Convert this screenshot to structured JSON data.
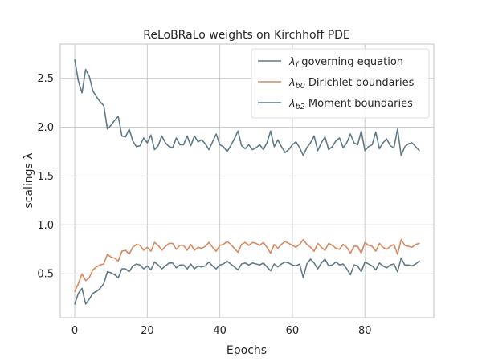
{
  "chart_data": {
    "type": "line",
    "title": "ReLoBRaLo weights on Kirchhoff PDE",
    "xlabel": "Epochs",
    "ylabel": "scalings λ",
    "xlim": [
      -4,
      99
    ],
    "ylim": [
      0.05,
      2.85
    ],
    "xticks": [
      0,
      20,
      40,
      60,
      80
    ],
    "yticks": [
      0.5,
      1.0,
      1.5,
      2.0,
      2.5
    ],
    "xtick_labels": [
      "0",
      "20",
      "40",
      "60",
      "80"
    ],
    "ytick_labels": [
      "0.5",
      "1.0",
      "1.5",
      "2.0",
      "2.5"
    ],
    "grid": true,
    "legend_position": "top-right",
    "x": [
      0,
      1,
      2,
      3,
      4,
      5,
      6,
      7,
      8,
      9,
      10,
      11,
      12,
      13,
      14,
      15,
      16,
      17,
      18,
      19,
      20,
      21,
      22,
      23,
      24,
      25,
      26,
      27,
      28,
      29,
      30,
      31,
      32,
      33,
      34,
      35,
      36,
      37,
      38,
      39,
      40,
      41,
      42,
      43,
      44,
      45,
      46,
      47,
      48,
      49,
      50,
      51,
      52,
      53,
      54,
      55,
      56,
      57,
      58,
      59,
      60,
      61,
      62,
      63,
      64,
      65,
      66,
      67,
      68,
      69,
      70,
      71,
      72,
      73,
      74,
      75,
      76,
      77,
      78,
      79,
      80,
      81,
      82,
      83,
      84,
      85,
      86,
      87,
      88,
      89,
      90,
      91,
      92,
      93,
      94,
      95
    ],
    "series": [
      {
        "name_prefix": "λ",
        "name_sub": "f",
        "name_rest": " governing equation",
        "color": "#5f7b87",
        "values": [
          2.69,
          2.47,
          2.35,
          2.59,
          2.52,
          2.37,
          2.31,
          2.26,
          2.22,
          1.98,
          2.02,
          2.07,
          2.11,
          1.91,
          1.9,
          1.98,
          1.86,
          1.8,
          1.81,
          1.89,
          1.84,
          1.92,
          1.77,
          1.81,
          1.91,
          1.84,
          1.8,
          1.79,
          1.89,
          1.82,
          1.82,
          1.91,
          1.81,
          1.91,
          1.85,
          1.87,
          1.83,
          1.77,
          1.85,
          1.93,
          1.82,
          1.8,
          1.75,
          1.81,
          1.88,
          1.96,
          1.81,
          1.78,
          1.82,
          1.77,
          1.79,
          1.82,
          1.77,
          1.84,
          1.96,
          1.8,
          1.87,
          1.8,
          1.74,
          1.77,
          1.82,
          1.85,
          1.79,
          1.71,
          1.79,
          1.84,
          1.91,
          1.76,
          1.84,
          1.9,
          1.77,
          1.8,
          1.86,
          1.89,
          1.79,
          1.84,
          1.93,
          1.84,
          1.82,
          1.96,
          1.76,
          1.8,
          1.82,
          1.95,
          1.78,
          1.84,
          1.88,
          1.81,
          1.79,
          1.98,
          1.71,
          1.8,
          1.83,
          1.84,
          1.8,
          1.76
        ]
      },
      {
        "name_prefix": "λ",
        "name_sub": "b0",
        "name_rest": " Dirichlet boundaries",
        "color": "#d9895e",
        "values": [
          0.32,
          0.4,
          0.5,
          0.43,
          0.46,
          0.54,
          0.57,
          0.59,
          0.6,
          0.7,
          0.67,
          0.66,
          0.63,
          0.73,
          0.74,
          0.7,
          0.77,
          0.8,
          0.79,
          0.74,
          0.77,
          0.73,
          0.82,
          0.79,
          0.74,
          0.78,
          0.81,
          0.81,
          0.75,
          0.79,
          0.79,
          0.74,
          0.8,
          0.74,
          0.77,
          0.76,
          0.78,
          0.82,
          0.77,
          0.73,
          0.79,
          0.8,
          0.83,
          0.8,
          0.76,
          0.72,
          0.8,
          0.82,
          0.79,
          0.82,
          0.81,
          0.79,
          0.82,
          0.77,
          0.71,
          0.8,
          0.76,
          0.8,
          0.83,
          0.81,
          0.79,
          0.77,
          0.8,
          0.85,
          0.8,
          0.77,
          0.73,
          0.81,
          0.77,
          0.74,
          0.81,
          0.79,
          0.76,
          0.75,
          0.8,
          0.77,
          0.71,
          0.78,
          0.78,
          0.71,
          0.82,
          0.79,
          0.78,
          0.73,
          0.81,
          0.77,
          0.75,
          0.78,
          0.8,
          0.7,
          0.85,
          0.79,
          0.78,
          0.77,
          0.8,
          0.81
        ]
      },
      {
        "name_prefix": "λ",
        "name_sub": "b2",
        "name_rest": " Moment boundaries",
        "color": "#5f7b87",
        "values": [
          0.19,
          0.3,
          0.35,
          0.19,
          0.24,
          0.3,
          0.32,
          0.35,
          0.4,
          0.52,
          0.51,
          0.49,
          0.46,
          0.55,
          0.55,
          0.52,
          0.58,
          0.6,
          0.59,
          0.55,
          0.58,
          0.54,
          0.62,
          0.59,
          0.55,
          0.58,
          0.61,
          0.61,
          0.56,
          0.59,
          0.59,
          0.55,
          0.6,
          0.55,
          0.58,
          0.57,
          0.58,
          0.62,
          0.58,
          0.55,
          0.59,
          0.6,
          0.63,
          0.6,
          0.57,
          0.54,
          0.6,
          0.61,
          0.59,
          0.61,
          0.6,
          0.59,
          0.61,
          0.57,
          0.53,
          0.6,
          0.57,
          0.6,
          0.62,
          0.61,
          0.59,
          0.58,
          0.6,
          0.46,
          0.6,
          0.65,
          0.61,
          0.55,
          0.61,
          0.65,
          0.58,
          0.59,
          0.62,
          0.59,
          0.6,
          0.55,
          0.49,
          0.59,
          0.58,
          0.52,
          0.62,
          0.6,
          0.58,
          0.54,
          0.61,
          0.58,
          0.56,
          0.59,
          0.6,
          0.52,
          0.66,
          0.59,
          0.59,
          0.58,
          0.6,
          0.63
        ]
      }
    ]
  }
}
